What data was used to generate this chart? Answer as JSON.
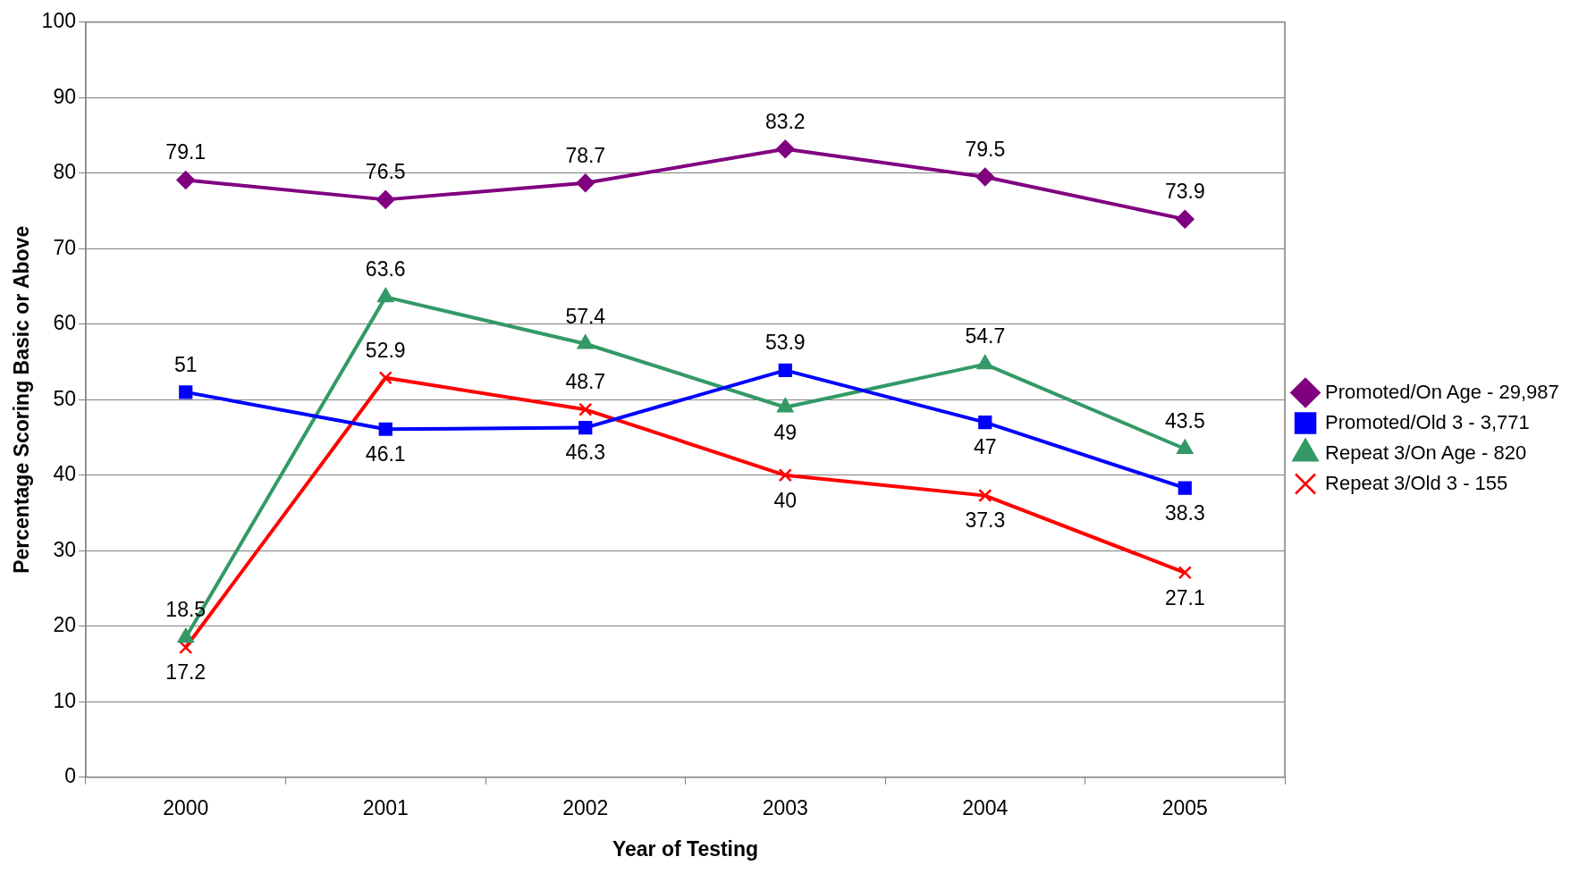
{
  "chart_data": {
    "type": "line",
    "xlabel": "Year of Testing",
    "ylabel": "Percentage Scoring Basic or Above",
    "categories": [
      "2000",
      "2001",
      "2002",
      "2003",
      "2004",
      "2005"
    ],
    "series": [
      {
        "name": "Promoted/On Age - 29,987",
        "color": "#800080",
        "marker": "diamond",
        "values": [
          79.1,
          76.5,
          78.7,
          83.2,
          79.5,
          73.9
        ]
      },
      {
        "name": "Promoted/Old 3 - 3,771",
        "color": "#0000ff",
        "marker": "square",
        "values": [
          51,
          46.1,
          46.3,
          53.9,
          47,
          38.3
        ]
      },
      {
        "name": "Repeat 3/On Age - 820",
        "color": "#339966",
        "marker": "triangle",
        "values": [
          18.5,
          63.6,
          57.4,
          49,
          54.7,
          43.5
        ]
      },
      {
        "name": "Repeat 3/Old 3 - 155",
        "color": "#ff0000",
        "marker": "cross",
        "values": [
          17.2,
          52.9,
          48.7,
          40,
          37.3,
          27.1
        ]
      }
    ],
    "ylim": [
      0,
      100
    ],
    "yticks": [
      0,
      10,
      20,
      30,
      40,
      50,
      60,
      70,
      80,
      90,
      100
    ],
    "grid": "y",
    "legend": "right",
    "data_labels": true,
    "line_style": "solid"
  }
}
